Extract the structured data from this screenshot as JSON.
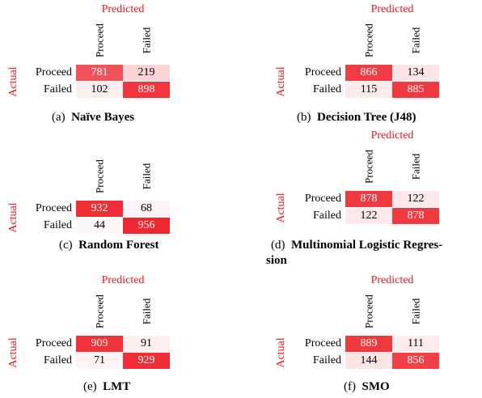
{
  "header": {
    "predicted": "Predicted",
    "actual": "Actual"
  },
  "labels": {
    "proceed": "Proceed",
    "failed": "Failed"
  },
  "panels": [
    {
      "tag": "(a)",
      "name": "Naïve Bayes",
      "name_cont": "",
      "matrix": [
        [
          781,
          219
        ],
        [
          102,
          898
        ]
      ],
      "show_predicted": true
    },
    {
      "tag": "(b)",
      "name": "Decision Tree (J48)",
      "name_cont": "",
      "matrix": [
        [
          866,
          134
        ],
        [
          115,
          885
        ]
      ],
      "show_predicted": true
    },
    {
      "tag": "(c)",
      "name": "Random Forest",
      "name_cont": "",
      "matrix": [
        [
          932,
          68
        ],
        [
          44,
          956
        ]
      ],
      "show_predicted": false
    },
    {
      "tag": "(d)",
      "name": "Multinomial Logistic Regres-",
      "name_cont": "sion",
      "matrix": [
        [
          878,
          122
        ],
        [
          122,
          878
        ]
      ],
      "show_predicted": true
    },
    {
      "tag": "(e)",
      "name": "LMT",
      "name_cont": "",
      "matrix": [
        [
          909,
          91
        ],
        [
          71,
          929
        ]
      ],
      "show_predicted": true
    },
    {
      "tag": "(f)",
      "name": "SMO",
      "name_cont": "",
      "matrix": [
        [
          889,
          111
        ],
        [
          144,
          856
        ]
      ],
      "show_predicted": true
    }
  ],
  "colors": {
    "accent": "#e8141e",
    "cell_max": "#ee1c25",
    "cell_min": "#ffffff"
  }
}
